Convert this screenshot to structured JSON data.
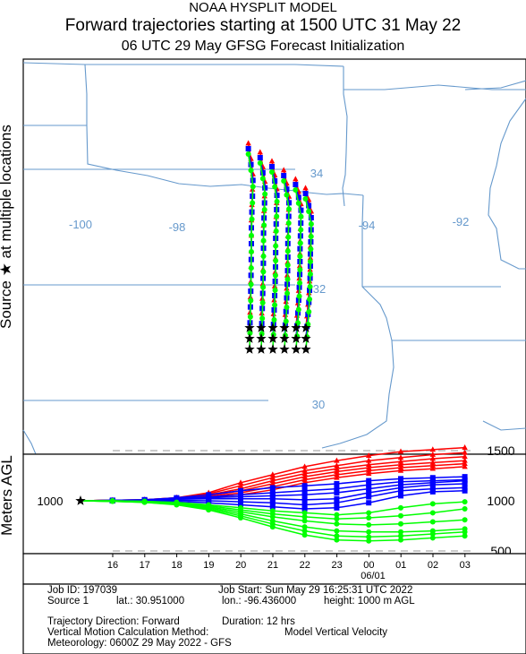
{
  "header": {
    "line1": "NOAA HYSPLIT MODEL",
    "line2": "Forward trajectories starting at 1500 UTC 31 May 22",
    "line3": "06 UTC 29 May    GFSG  Forecast Initialization"
  },
  "side_labels": {
    "source": "Source ★  at multiple locations",
    "height": "Meters AGL"
  },
  "map": {
    "lon_labels": [
      "-100",
      "-98",
      "-94",
      "-92"
    ],
    "lat_labels": [
      "34",
      "32",
      "30"
    ]
  },
  "info": {
    "job_id": "Job ID: 197039",
    "job_start": "Job Start: Sun May 29 16:25:31 UTC 2022",
    "source": "Source 1",
    "lat": "lat.: 30.951000",
    "lon": "lon.: -96.436000",
    "height": "height: 1000 m AGL",
    "direction": "Trajectory Direction: Forward",
    "duration": "Duration: 12 hrs",
    "vertical_label": "Vertical Motion Calculation Method:",
    "vertical_value": "Model Vertical Velocity",
    "meteorology": "Meteorology: 0600Z 29 May 2022 - GFS"
  },
  "colors": {
    "red": "#ff0000",
    "blue": "#0000ff",
    "green": "#00ff00",
    "map": "#6699cc"
  },
  "chart_data": {
    "type": "line",
    "start_heights_m": 1000,
    "height_axis_labels": [
      "1500",
      "1000",
      "500"
    ],
    "height_tick_values": [
      1500,
      1000,
      500
    ],
    "time_labels": [
      "16",
      "17",
      "18",
      "19",
      "20",
      "21",
      "22",
      "23",
      "00",
      "01",
      "02",
      "03"
    ],
    "date_label": "06/01",
    "start_label": "1000",
    "series": [
      {
        "values": [
          1000,
          1005,
          1010,
          1030,
          1080,
          1180,
          1260,
          1340,
          1400,
          1450,
          1490,
          1510,
          1530
        ]
      },
      {
        "values": [
          1000,
          1005,
          1010,
          1030,
          1070,
          1150,
          1230,
          1300,
          1350,
          1400,
          1430,
          1460,
          1480
        ]
      },
      {
        "values": [
          1000,
          1005,
          1005,
          1025,
          1060,
          1120,
          1200,
          1270,
          1320,
          1360,
          1390,
          1420,
          1440
        ]
      },
      {
        "values": [
          1000,
          1005,
          1005,
          1020,
          1050,
          1100,
          1170,
          1240,
          1290,
          1330,
          1360,
          1380,
          1400
        ]
      },
      {
        "values": [
          1000,
          1005,
          1005,
          1020,
          1040,
          1080,
          1140,
          1210,
          1260,
          1300,
          1330,
          1350,
          1370
        ]
      },
      {
        "values": [
          1000,
          1000,
          1005,
          1015,
          1030,
          1060,
          1110,
          1180,
          1230,
          1270,
          1300,
          1320,
          1340
        ]
      },
      {
        "values": [
          1000,
          1005,
          1010,
          1030,
          1060,
          1100,
          1130,
          1150,
          1170,
          1200,
          1220,
          1230,
          1240
        ]
      },
      {
        "values": [
          1000,
          1005,
          1010,
          1025,
          1040,
          1060,
          1080,
          1100,
          1120,
          1160,
          1190,
          1200,
          1210
        ]
      },
      {
        "values": [
          1000,
          1000,
          1005,
          1020,
          1030,
          1040,
          1050,
          1060,
          1080,
          1120,
          1160,
          1180,
          1200
        ]
      },
      {
        "values": [
          1000,
          1000,
          1005,
          1015,
          1020,
          1020,
          1020,
          1010,
          1020,
          1080,
          1130,
          1160,
          1170
        ]
      },
      {
        "values": [
          1000,
          1000,
          1000,
          1005,
          1000,
          990,
          980,
          960,
          980,
          1040,
          1100,
          1120,
          1130
        ]
      },
      {
        "values": [
          1000,
          1000,
          1000,
          995,
          980,
          960,
          940,
          920,
          930,
          980,
          1050,
          1090,
          1100
        ]
      },
      {
        "values": [
          1000,
          1000,
          995,
          985,
          960,
          930,
          900,
          880,
          860,
          880,
          930,
          970,
          990
        ]
      },
      {
        "values": [
          1000,
          1000,
          995,
          980,
          950,
          910,
          870,
          840,
          820,
          830,
          850,
          880,
          920
        ]
      },
      {
        "values": [
          1000,
          995,
          990,
          975,
          940,
          890,
          840,
          800,
          770,
          760,
          770,
          790,
          810
        ]
      },
      {
        "values": [
          1000,
          995,
          990,
          970,
          930,
          870,
          800,
          740,
          700,
          690,
          690,
          700,
          720
        ]
      },
      {
        "values": [
          1000,
          995,
          985,
          965,
          920,
          850,
          770,
          700,
          650,
          640,
          650,
          670,
          690
        ]
      },
      {
        "values": [
          1000,
          995,
          985,
          960,
          910,
          830,
          740,
          660,
          610,
          600,
          610,
          630,
          650
        ]
      }
    ]
  }
}
